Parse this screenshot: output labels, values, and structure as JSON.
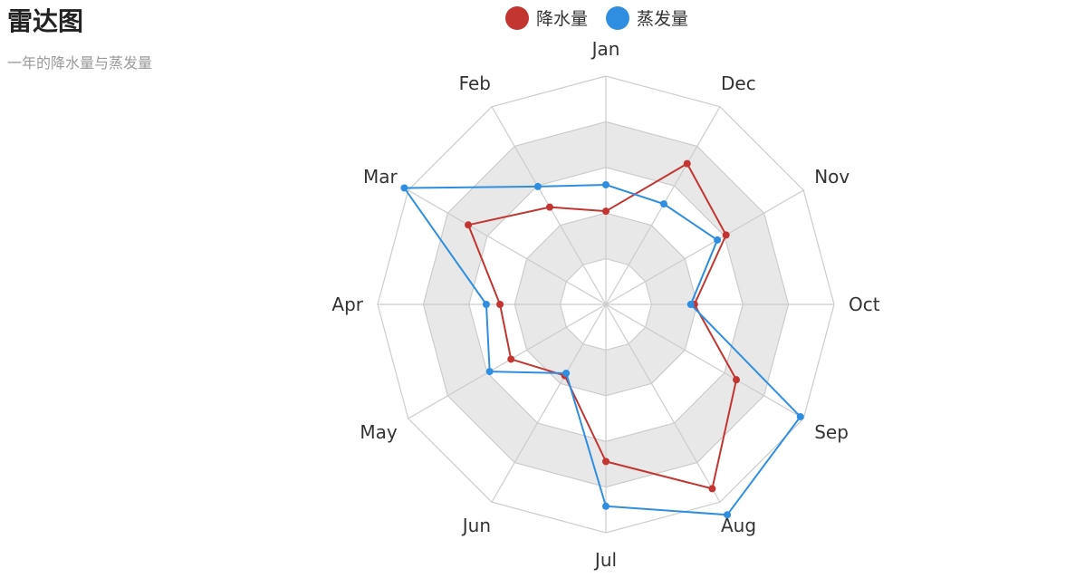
{
  "chart_data": {
    "type": "radar",
    "title": "雷达图",
    "subtitle": "一年的降水量与蒸发量",
    "indicators": [
      "Jan",
      "Feb",
      "Mar",
      "Apr",
      "May",
      "Jun",
      "Jul",
      "Aug",
      "Sep",
      "Oct",
      "Nov",
      "Dec"
    ],
    "max": 250,
    "splitNumber": 5,
    "legend_position": "top-center",
    "series": [
      {
        "name": "降水量",
        "color": "#c23531",
        "values": [
          102,
          123,
          174,
          116,
          120,
          90,
          172,
          233,
          165,
          97,
          152,
          178
        ]
      },
      {
        "name": "蒸发量",
        "color": "#2f8ee0",
        "values": [
          131,
          149,
          255,
          131,
          147,
          87,
          221,
          266,
          246,
          93,
          141,
          127
        ]
      }
    ]
  }
}
